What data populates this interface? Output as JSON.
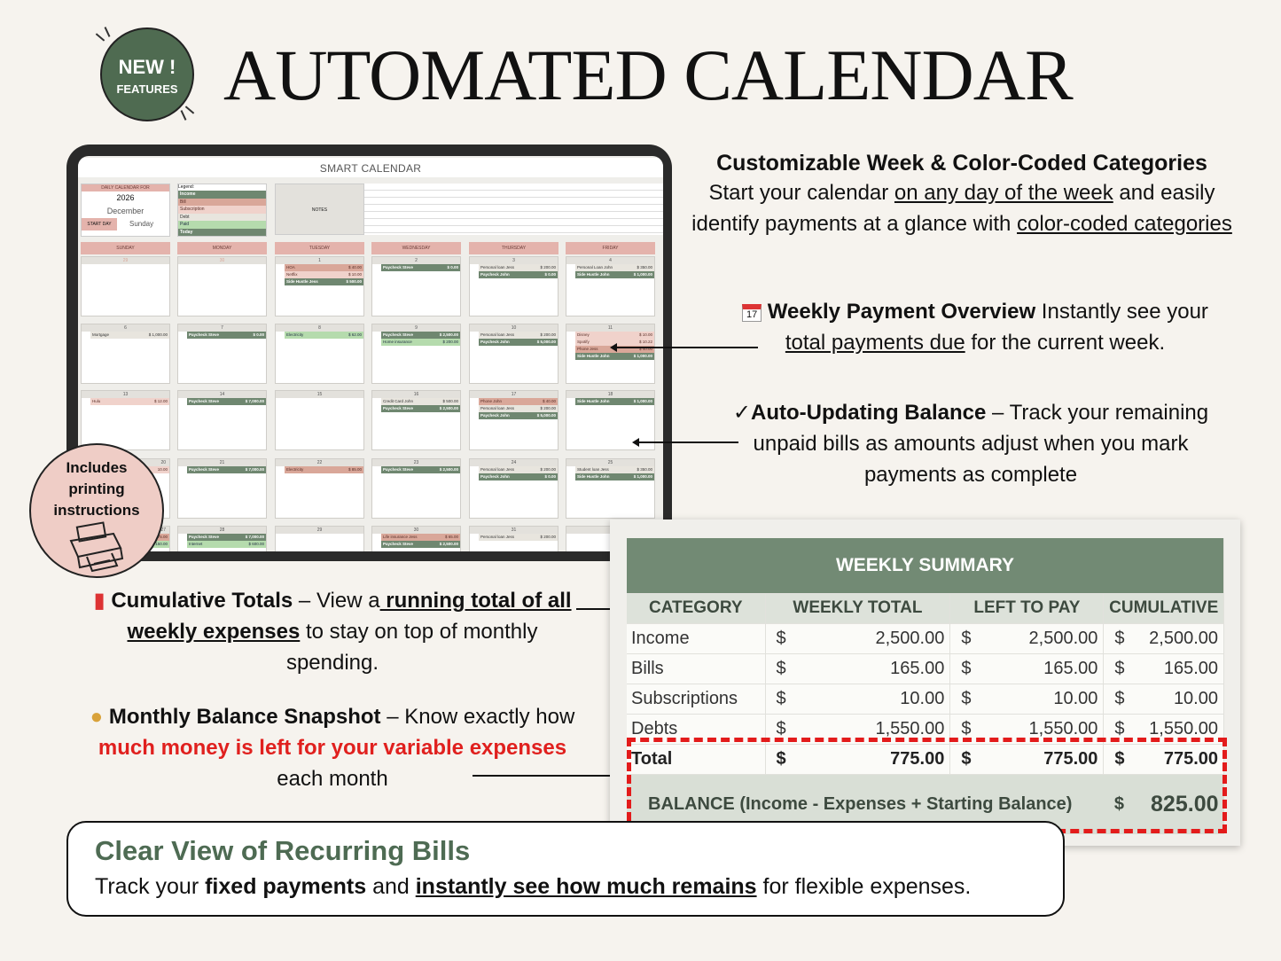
{
  "badge": {
    "line1": "NEW !",
    "line2": "FEATURES"
  },
  "title": "AUTOMATED CALENDAR",
  "calendar": {
    "title": "SMART CALENDAR",
    "daily_label": "DAILY CALENDAR FOR",
    "year": "2026",
    "month": "December",
    "start_day_label": "START DAY",
    "start_day": "Sunday",
    "legend_label": "Legend:",
    "legend": [
      {
        "label": "Income",
        "type": "income"
      },
      {
        "label": "Bill",
        "type": "bill"
      },
      {
        "label": "Subscription",
        "type": "subscription"
      },
      {
        "label": "Debt",
        "type": "debt"
      },
      {
        "label": "Paid",
        "type": "paid"
      },
      {
        "label": "Today",
        "type": "income"
      }
    ],
    "notes_label": "NOTES",
    "days": [
      "SUNDAY",
      "MONDAY",
      "TUESDAY",
      "WEDNESDAY",
      "THURSDAY",
      "FRIDAY"
    ],
    "colors": {
      "income": "#6f8770",
      "bill": "#d9a799",
      "subscription": "#f0d2cb",
      "debt": "#e8e5de",
      "paid": "#b5dbad"
    },
    "weeks": [
      [
        {
          "d": "29",
          "e": []
        },
        {
          "d": "30",
          "e": []
        },
        {
          "d": "1",
          "e": [
            [
              "HOA",
              "$ 40.00",
              "bill"
            ],
            [
              "Netflix",
              "$ 10.00",
              "subscription"
            ],
            [
              "Side Hustle Jess",
              "$ 500.00",
              "income"
            ]
          ]
        },
        {
          "d": "2",
          "e": [
            [
              "Paycheck Steve",
              "$ 0.00",
              "income"
            ]
          ]
        },
        {
          "d": "3",
          "e": [
            [
              "Personal loan Jess",
              "$ 200.00",
              "debt"
            ],
            [
              "Paycheck John",
              "$ 0.00",
              "income"
            ]
          ]
        },
        {
          "d": "4",
          "e": [
            [
              "Personal Loan John",
              "$ 350.00",
              "debt"
            ],
            [
              "Side Hustle John",
              "$ 1,000.00",
              "income"
            ]
          ]
        }
      ],
      [
        {
          "d": "6",
          "e": [
            [
              "Mortgage",
              "$ 1,000.00",
              "debt"
            ]
          ]
        },
        {
          "d": "7",
          "e": [
            [
              "Paycheck Steve",
              "$ 0.00",
              "income"
            ]
          ]
        },
        {
          "d": "8",
          "e": [
            [
              "Electricity",
              "$ 62.00",
              "paid"
            ]
          ]
        },
        {
          "d": "9",
          "e": [
            [
              "Paycheck Steve",
              "$ 2,500.00",
              "income"
            ],
            [
              "Home insurance",
              "$ 200.00",
              "paid"
            ]
          ]
        },
        {
          "d": "10",
          "e": [
            [
              "Personal loan Jess",
              "$ 200.00",
              "debt"
            ],
            [
              "Paycheck John",
              "$ 5,000.00",
              "income"
            ]
          ]
        },
        {
          "d": "11",
          "e": [
            [
              "Disney",
              "$ 10.00",
              "subscription"
            ],
            [
              "Spotify",
              "$ 10.22",
              "subscription"
            ],
            [
              "Phone Jess",
              "$ 40.00",
              "bill"
            ],
            [
              "Side Hustle John",
              "$ 1,000.00",
              "income"
            ]
          ]
        }
      ],
      [
        {
          "d": "13",
          "e": [
            [
              "Hulu",
              "$ 12.00",
              "subscription"
            ]
          ]
        },
        {
          "d": "14",
          "e": [
            [
              "Paycheck Steve",
              "$ 7,000.00",
              "income"
            ]
          ]
        },
        {
          "d": "15",
          "e": []
        },
        {
          "d": "16",
          "e": [
            [
              "Credit Card John",
              "$ 500.00",
              "debt"
            ],
            [
              "Paycheck Steve",
              "$ 2,500.00",
              "income"
            ]
          ]
        },
        {
          "d": "17",
          "e": [
            [
              "Phone John",
              "$ 40.00",
              "bill"
            ],
            [
              "Personal loan Jess",
              "$ 200.00",
              "debt"
            ],
            [
              "Paycheck John",
              "$ 5,000.00",
              "income"
            ]
          ]
        },
        {
          "d": "18",
          "e": [
            [
              "Side Hustle John",
              "$ 1,000.00",
              "income"
            ]
          ]
        }
      ],
      [
        {
          "d": "20",
          "e": [
            [
              "",
              "10.00",
              "subscription"
            ]
          ]
        },
        {
          "d": "21",
          "e": [
            [
              "Paycheck Steve",
              "$ 7,000.00",
              "income"
            ]
          ]
        },
        {
          "d": "22",
          "e": [
            [
              "Electricity",
              "$ 85.00",
              "bill"
            ]
          ]
        },
        {
          "d": "23",
          "e": [
            [
              "Paycheck Steve",
              "$ 2,500.00",
              "income"
            ]
          ]
        },
        {
          "d": "24",
          "e": [
            [
              "Personal loan Jess",
              "$ 200.00",
              "debt"
            ],
            [
              "Paycheck John",
              "$ 0.00",
              "income"
            ]
          ]
        },
        {
          "d": "25",
          "e": [
            [
              "Student loan Jess",
              "$ 350.00",
              "debt"
            ],
            [
              "Side Hustle John",
              "$ 1,000.00",
              "income"
            ]
          ]
        }
      ],
      [
        {
          "d": "27",
          "e": [
            [
              "",
              "75.00",
              "bill"
            ],
            [
              "",
              "150.00",
              "paid"
            ]
          ]
        },
        {
          "d": "28",
          "e": [
            [
              "Paycheck Steve",
              "$ 7,000.00",
              "income"
            ],
            [
              "Internet",
              "$ 600.00",
              "paid"
            ]
          ]
        },
        {
          "d": "29",
          "e": []
        },
        {
          "d": "30",
          "e": [
            [
              "Life insurance Jess",
              "$ 65.00",
              "bill"
            ],
            [
              "Paycheck Steve",
              "$ 2,500.00",
              "income"
            ]
          ]
        },
        {
          "d": "31",
          "e": [
            [
              "Personal loan Jess",
              "$ 200.00",
              "debt"
            ]
          ]
        },
        {
          "d": "",
          "e": []
        }
      ]
    ]
  },
  "features": {
    "f1": {
      "title": "Customizable Week & Color-Coded Categories",
      "t1": "Start your calendar ",
      "u1": "on any day of the week",
      "t2": " and easily identify payments at a glance with ",
      "u2": "color-coded categories"
    },
    "f2": {
      "icon": "calendar-icon",
      "title": "Weekly Payment Overview",
      "t1": " Instantly see your ",
      "u1": "total payments due",
      "t2": " for the current week."
    },
    "f3": {
      "icon": "checkmark-icon",
      "title": "Auto-Updating Balance",
      "t1": " – Track your remaining unpaid bills as amounts adjust when you mark payments as complete"
    },
    "f4": {
      "icon": "bar-chart-icon",
      "title": "Cumulative Totals",
      "t1": " – View a",
      "u1": " running total of all weekly expenses",
      "t2": " to stay on top of monthly spending."
    },
    "f5": {
      "icon": "money-bag-icon",
      "title": "Monthly Balance Snapshot",
      "t1": " – Know exactly how ",
      "r1": "much money is left for your variable expenses",
      "t2": " each month"
    }
  },
  "printer_badge": {
    "text": "Includes printing instructions"
  },
  "summary": {
    "title": "WEEKLY SUMMARY",
    "headers": [
      "CATEGORY",
      "WEEKLY TOTAL",
      "LEFT TO PAY",
      "CUMULATIVE"
    ],
    "rows": [
      {
        "cat": "Income",
        "w": "2,500.00",
        "l": "2,500.00",
        "c": "2,500.00"
      },
      {
        "cat": "Bills",
        "w": "165.00",
        "l": "165.00",
        "c": "165.00"
      },
      {
        "cat": "Subscriptions",
        "w": "10.00",
        "l": "10.00",
        "c": "10.00"
      },
      {
        "cat": "Debts",
        "w": "1,550.00",
        "l": "1,550.00",
        "c": "1,550.00"
      }
    ],
    "total": {
      "cat": "Total",
      "w": "775.00",
      "l": "775.00",
      "c": "775.00"
    },
    "currency": "$",
    "balance_label": "BALANCE (Income - Expenses + Starting Balance)",
    "balance_value": "825.00",
    "highlight_color": "#e31b1b"
  },
  "bottom": {
    "title": "Clear View of Recurring Bills",
    "t1": "Track your ",
    "b1": "fixed payments",
    "t2": " and ",
    "u1": "instantly see how much remains",
    "t3": " for flexible expenses."
  }
}
